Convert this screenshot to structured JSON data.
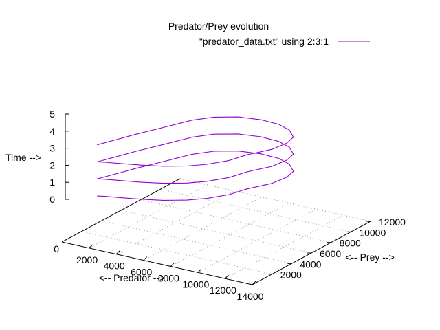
{
  "chart_data": {
    "type": "line",
    "projection": "3d",
    "title": "Predator/Prey evolution",
    "xlabel": "<-- Predator -->",
    "ylabel": "<-- Prey -->",
    "zlabel": "Time -->",
    "xlim": [
      0,
      14000
    ],
    "ylim": [
      0,
      12000
    ],
    "zlim": [
      0,
      5
    ],
    "xticks": [
      "2000",
      "4000",
      "6000",
      "8000",
      "10000",
      "12000",
      "14000"
    ],
    "yticks": [
      "2000",
      "4000",
      "6000",
      "8000",
      "10000",
      "12000"
    ],
    "zticks": [
      "0",
      "1",
      "2",
      "3",
      "4",
      "5"
    ],
    "base_tick": "0",
    "grid": true,
    "legend_position": "top-right",
    "series": [
      {
        "name": "\"predator_data.txt\" using 2:3:1",
        "color": "#9400d3",
        "x": [
          1500,
          2000,
          3000,
          4300,
          5700,
          7000,
          8000,
          8900,
          9400,
          10300,
          10600,
          10500,
          9700,
          8700,
          7400,
          6000,
          4800,
          4000,
          3300,
          2500,
          2000,
          1500,
          2000,
          3000,
          4300,
          5700,
          7000,
          8000,
          8900,
          9400,
          10300,
          10600,
          10500,
          9700,
          8700,
          7400,
          6000,
          4800,
          4000,
          3300,
          2500,
          2000,
          1500,
          2000,
          3000,
          4300,
          5700,
          7000,
          8000,
          8900,
          9400,
          10300,
          10600,
          10500,
          9700,
          8700,
          7400,
          6000,
          4800,
          4000,
          3300,
          2500,
          2000,
          1500
        ],
        "y": [
          1500,
          1600,
          1750,
          2000,
          2400,
          3000,
          3700,
          4700,
          5800,
          7100,
          8200,
          9000,
          9700,
          10000,
          10000,
          9600,
          8800,
          7700,
          6000,
          4100,
          2800,
          1500,
          1600,
          1750,
          2000,
          2400,
          3000,
          3700,
          4700,
          5800,
          7100,
          8200,
          9000,
          9700,
          10000,
          10000,
          9600,
          8800,
          7700,
          6000,
          4100,
          2800,
          1500,
          1600,
          1750,
          2000,
          2400,
          3000,
          3700,
          4700,
          5800,
          7100,
          8200,
          9000,
          9700,
          10000,
          10000,
          9600,
          8800,
          7700,
          6000,
          4100,
          2800,
          1500
        ],
        "z": [
          0,
          0.04,
          0.1,
          0.16,
          0.22,
          0.28,
          0.34,
          0.42,
          0.5,
          0.58,
          0.66,
          0.74,
          0.8,
          0.86,
          0.9,
          0.94,
          0.96,
          0.98,
          0.99,
          1.0,
          1.0,
          1.0,
          1.04,
          1.1,
          1.16,
          1.22,
          1.28,
          1.34,
          1.42,
          1.5,
          1.58,
          1.66,
          1.74,
          1.8,
          1.86,
          1.9,
          1.94,
          1.96,
          1.98,
          1.99,
          2.0,
          2.0,
          2.0,
          2.04,
          2.1,
          2.16,
          2.22,
          2.28,
          2.34,
          2.42,
          2.5,
          2.58,
          2.66,
          2.74,
          2.8,
          2.86,
          2.9,
          2.94,
          2.96,
          2.98,
          2.99,
          3.0,
          3.0,
          3.0
        ]
      }
    ]
  }
}
